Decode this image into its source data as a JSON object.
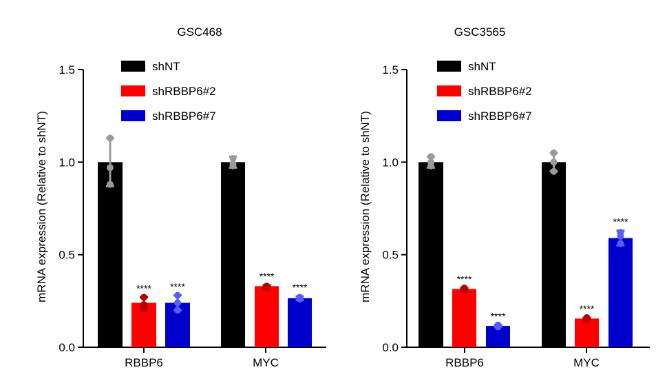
{
  "chart_data": [
    {
      "type": "bar",
      "title": "GSC468",
      "ylabel": "mRNA expression (Relative to shNT)",
      "xlabel": "",
      "ylim": [
        0,
        1.5
      ],
      "yticks": [
        "0.0",
        "0.5",
        "1.0",
        "1.5"
      ],
      "categories": [
        "RBBP6",
        "MYC"
      ],
      "legend_position": "top-center",
      "series": [
        {
          "name": "shNT",
          "color": "#000000",
          "point_color": "#9a9a9a",
          "values": [
            1.0,
            1.0
          ],
          "errors": [
            0.13,
            0.03
          ],
          "points": [
            [
              1.13,
              0.97,
              0.88
            ],
            [
              1.02,
              0.99,
              0.98
            ]
          ],
          "labels": [
            "",
            ""
          ]
        },
        {
          "name": "shRBBP6#2",
          "color": "#ff0000",
          "point_color": "#b30000",
          "values": [
            0.24,
            0.33
          ],
          "errors": [
            0.03,
            0.005
          ],
          "points": [
            [
              0.27,
              0.23,
              0.21
            ],
            [
              0.33,
              0.33,
              0.32
            ]
          ],
          "labels": [
            "****",
            "****"
          ]
        },
        {
          "name": "shRBBP6#7",
          "color": "#0000cc",
          "point_color": "#5b5bff",
          "values": [
            0.24,
            0.265
          ],
          "errors": [
            0.04,
            0.01
          ],
          "points": [
            [
              0.28,
              0.24,
              0.2
            ],
            [
              0.27,
              0.265,
              0.26
            ]
          ],
          "labels": [
            "****",
            "****"
          ]
        }
      ]
    },
    {
      "type": "bar",
      "title": "GSC3565",
      "ylabel": "mRNA expression (Relative to shNT)",
      "xlabel": "",
      "ylim": [
        0,
        1.5
      ],
      "yticks": [
        "0.0",
        "0.5",
        "1.0",
        "1.5"
      ],
      "categories": [
        "RBBP6",
        "MYC"
      ],
      "legend_position": "top-center",
      "series": [
        {
          "name": "shNT",
          "color": "#000000",
          "point_color": "#9a9a9a",
          "values": [
            1.0,
            1.0
          ],
          "errors": [
            0.03,
            0.05
          ],
          "points": [
            [
              1.03,
              1.0,
              0.98
            ],
            [
              1.05,
              1.0,
              0.95
            ]
          ],
          "labels": [
            "",
            ""
          ]
        },
        {
          "name": "shRBBP6#2",
          "color": "#ff0000",
          "point_color": "#b30000",
          "values": [
            0.315,
            0.155
          ],
          "errors": [
            0.005,
            0.005
          ],
          "points": [
            [
              0.32,
              0.315,
              0.31
            ],
            [
              0.16,
              0.155,
              0.15
            ]
          ],
          "labels": [
            "****",
            "****"
          ]
        },
        {
          "name": "shRBBP6#7",
          "color": "#0000cc",
          "point_color": "#5b5bff",
          "values": [
            0.115,
            0.59
          ],
          "errors": [
            0.005,
            0.04
          ],
          "points": [
            [
              0.12,
              0.115,
              0.11
            ],
            [
              0.62,
              0.6,
              0.56
            ]
          ],
          "labels": [
            "****",
            "****"
          ]
        }
      ]
    }
  ]
}
